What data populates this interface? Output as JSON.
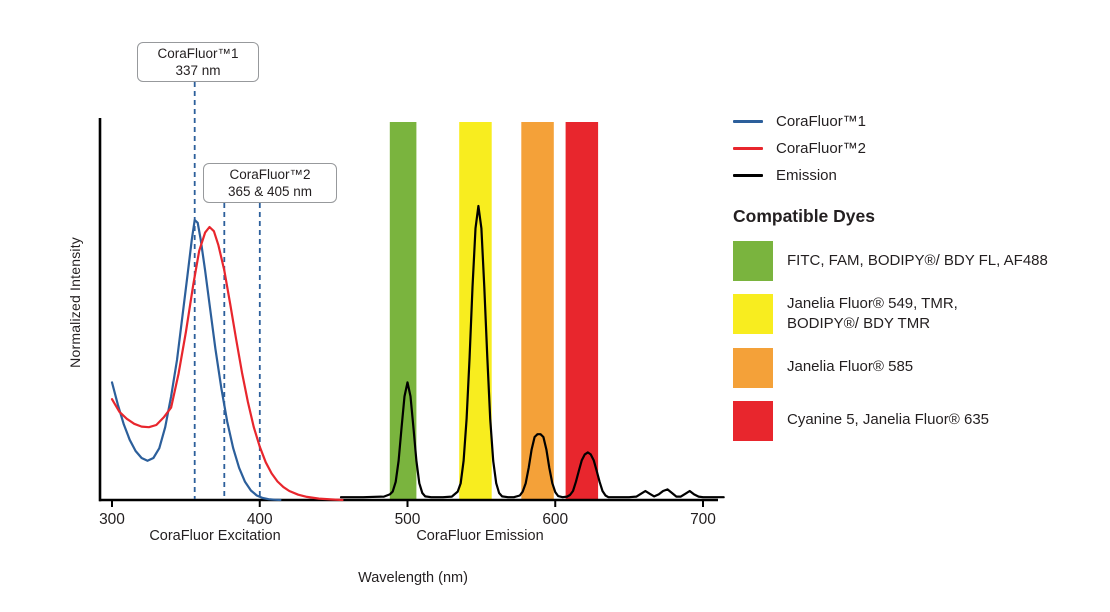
{
  "chart_data": {
    "type": "line",
    "title": "",
    "xlabel": "Wavelength (nm)",
    "ylabel": "Normalized Intensity",
    "x_ticks": [
      300,
      400,
      500,
      600,
      700
    ],
    "xlim": [
      295,
      725
    ],
    "ylim": [
      0,
      1.35
    ],
    "grid": false,
    "legend_position": "right",
    "annotation_line_color": "#2c5f9b",
    "x_axis_sections": [
      {
        "label": "CoraFluor Excitation"
      },
      {
        "label": "CoraFluor Emission"
      }
    ],
    "annotations": [
      {
        "title": "CoraFluor™1",
        "subtitle": "337 nm",
        "marker_nm": [
          356
        ]
      },
      {
        "title": "CoraFluor™2",
        "subtitle": "365 & 405 nm",
        "marker_nm": [
          376,
          400
        ]
      }
    ],
    "bands": [
      {
        "name": "green",
        "from_nm": 488,
        "to_nm": 506,
        "color": "#7ab43e"
      },
      {
        "name": "yellow",
        "from_nm": 535,
        "to_nm": 557,
        "color": "#f8ed1f"
      },
      {
        "name": "orange",
        "from_nm": 577,
        "to_nm": 599,
        "color": "#f4a139"
      },
      {
        "name": "red",
        "from_nm": 607,
        "to_nm": 629,
        "color": "#e8262d"
      }
    ],
    "series": [
      {
        "name": "corafluor1-excitation",
        "label": "CoraFluor™1",
        "color": "#2c5f9b",
        "width": 2.2,
        "points": [
          [
            300,
            0.42
          ],
          [
            304,
            0.34
          ],
          [
            308,
            0.27
          ],
          [
            312,
            0.215
          ],
          [
            316,
            0.175
          ],
          [
            320,
            0.15
          ],
          [
            324,
            0.14
          ],
          [
            328,
            0.15
          ],
          [
            332,
            0.185
          ],
          [
            336,
            0.26
          ],
          [
            340,
            0.37
          ],
          [
            344,
            0.5
          ],
          [
            348,
            0.67
          ],
          [
            351,
            0.8
          ],
          [
            354,
            0.93
          ],
          [
            356,
            1.0
          ],
          [
            358,
            0.99
          ],
          [
            360,
            0.93
          ],
          [
            363,
            0.82
          ],
          [
            366,
            0.7
          ],
          [
            370,
            0.54
          ],
          [
            374,
            0.4
          ],
          [
            378,
            0.28
          ],
          [
            382,
            0.185
          ],
          [
            386,
            0.115
          ],
          [
            390,
            0.065
          ],
          [
            394,
            0.034
          ],
          [
            398,
            0.016
          ],
          [
            402,
            0.007
          ],
          [
            406,
            0.003
          ],
          [
            410,
            0.001
          ],
          [
            414,
            0.0
          ]
        ]
      },
      {
        "name": "corafluor2-excitation",
        "label": "CoraFluor™2",
        "color": "#e8262d",
        "width": 2.2,
        "points": [
          [
            300,
            0.36
          ],
          [
            305,
            0.315
          ],
          [
            310,
            0.29
          ],
          [
            315,
            0.272
          ],
          [
            320,
            0.262
          ],
          [
            325,
            0.26
          ],
          [
            330,
            0.268
          ],
          [
            335,
            0.295
          ],
          [
            340,
            0.33
          ],
          [
            345,
            0.45
          ],
          [
            350,
            0.6
          ],
          [
            355,
            0.77
          ],
          [
            359,
            0.89
          ],
          [
            363,
            0.955
          ],
          [
            366,
            0.975
          ],
          [
            369,
            0.96
          ],
          [
            372,
            0.91
          ],
          [
            376,
            0.82
          ],
          [
            380,
            0.7
          ],
          [
            384,
            0.575
          ],
          [
            388,
            0.455
          ],
          [
            392,
            0.35
          ],
          [
            396,
            0.26
          ],
          [
            400,
            0.19
          ],
          [
            404,
            0.135
          ],
          [
            408,
            0.095
          ],
          [
            412,
            0.066
          ],
          [
            416,
            0.046
          ],
          [
            420,
            0.032
          ],
          [
            426,
            0.019
          ],
          [
            432,
            0.011
          ],
          [
            440,
            0.005
          ],
          [
            448,
            0.002
          ],
          [
            456,
            0.0
          ]
        ]
      },
      {
        "name": "emission",
        "label": "Emission",
        "color": "#000000",
        "width": 2.2,
        "points": [
          [
            455,
            0.01
          ],
          [
            470,
            0.01
          ],
          [
            484,
            0.012
          ],
          [
            488,
            0.02
          ],
          [
            490,
            0.03
          ],
          [
            492,
            0.065
          ],
          [
            494,
            0.14
          ],
          [
            496,
            0.26
          ],
          [
            498,
            0.37
          ],
          [
            500,
            0.42
          ],
          [
            502,
            0.37
          ],
          [
            504,
            0.26
          ],
          [
            506,
            0.14
          ],
          [
            508,
            0.06
          ],
          [
            510,
            0.025
          ],
          [
            512,
            0.013
          ],
          [
            516,
            0.01
          ],
          [
            524,
            0.01
          ],
          [
            530,
            0.012
          ],
          [
            534,
            0.03
          ],
          [
            536,
            0.06
          ],
          [
            538,
            0.14
          ],
          [
            540,
            0.29
          ],
          [
            542,
            0.51
          ],
          [
            544,
            0.76
          ],
          [
            546,
            0.97
          ],
          [
            548,
            1.05
          ],
          [
            550,
            0.97
          ],
          [
            552,
            0.76
          ],
          [
            554,
            0.51
          ],
          [
            556,
            0.29
          ],
          [
            558,
            0.14
          ],
          [
            560,
            0.06
          ],
          [
            562,
            0.025
          ],
          [
            564,
            0.013
          ],
          [
            568,
            0.01
          ],
          [
            572,
            0.01
          ],
          [
            576,
            0.016
          ],
          [
            578,
            0.03
          ],
          [
            580,
            0.06
          ],
          [
            582,
            0.115
          ],
          [
            584,
            0.18
          ],
          [
            586,
            0.225
          ],
          [
            588,
            0.235
          ],
          [
            590,
            0.235
          ],
          [
            592,
            0.225
          ],
          [
            594,
            0.18
          ],
          [
            596,
            0.115
          ],
          [
            598,
            0.06
          ],
          [
            600,
            0.028
          ],
          [
            602,
            0.014
          ],
          [
            605,
            0.01
          ],
          [
            608,
            0.012
          ],
          [
            610,
            0.018
          ],
          [
            612,
            0.032
          ],
          [
            614,
            0.065
          ],
          [
            616,
            0.105
          ],
          [
            618,
            0.142
          ],
          [
            620,
            0.163
          ],
          [
            622,
            0.17
          ],
          [
            624,
            0.163
          ],
          [
            626,
            0.142
          ],
          [
            628,
            0.105
          ],
          [
            630,
            0.065
          ],
          [
            632,
            0.032
          ],
          [
            634,
            0.016
          ],
          [
            636,
            0.01
          ],
          [
            642,
            0.01
          ],
          [
            650,
            0.01
          ],
          [
            655,
            0.012
          ],
          [
            658,
            0.022
          ],
          [
            661,
            0.032
          ],
          [
            664,
            0.022
          ],
          [
            667,
            0.013
          ],
          [
            670,
            0.02
          ],
          [
            673,
            0.032
          ],
          [
            676,
            0.038
          ],
          [
            679,
            0.025
          ],
          [
            682,
            0.012
          ],
          [
            685,
            0.012
          ],
          [
            688,
            0.022
          ],
          [
            691,
            0.032
          ],
          [
            694,
            0.02
          ],
          [
            697,
            0.012
          ],
          [
            700,
            0.01
          ],
          [
            708,
            0.01
          ],
          [
            714,
            0.01
          ]
        ]
      }
    ]
  },
  "legend": {
    "series": [
      {
        "label": "CoraFluor™1",
        "color": "#2c5f9b"
      },
      {
        "label": "CoraFluor™2",
        "color": "#e8262d"
      },
      {
        "label": "Emission",
        "color": "#000000"
      }
    ],
    "dyes_title": "Compatible Dyes",
    "dyes": [
      {
        "label": "FITC, FAM, BODIPY®/ BDY FL, AF488",
        "color": "#7ab43e"
      },
      {
        "label": "Janelia Fluor® 549, TMR,\nBODIPY®/ BDY TMR",
        "color": "#f8ed1f"
      },
      {
        "label": "Janelia Fluor® 585",
        "color": "#f4a139"
      },
      {
        "label": "Cyanine 5, Janelia Fluor® 635",
        "color": "#e8262d"
      }
    ]
  }
}
